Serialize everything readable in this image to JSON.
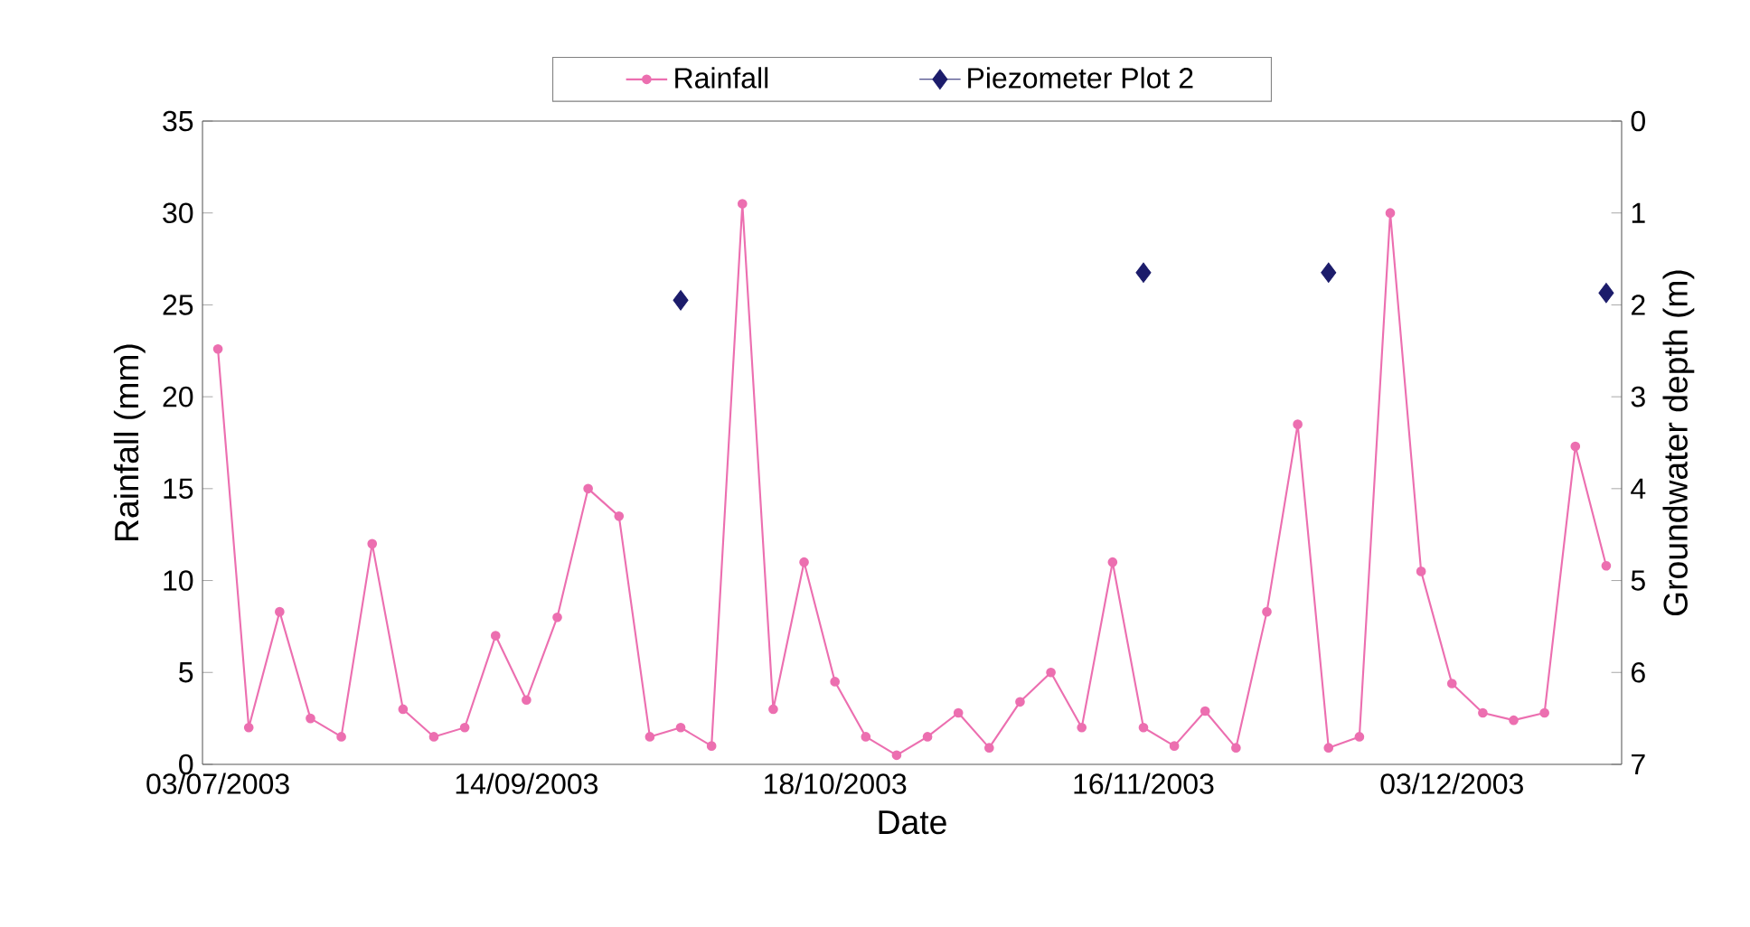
{
  "chart_data": {
    "type": "line",
    "xlabel": "Date",
    "ylabel": "Rainfall (mm)",
    "y2label": "Groundwater depth (m)",
    "categories": [
      "03/07/2003",
      null,
      null,
      null,
      null,
      null,
      null,
      null,
      null,
      null,
      "14/09/2003",
      null,
      null,
      null,
      null,
      null,
      null,
      null,
      null,
      null,
      "18/10/2003",
      null,
      null,
      null,
      null,
      null,
      null,
      null,
      null,
      null,
      "16/11/2003",
      null,
      null,
      null,
      null,
      null,
      null,
      null,
      null,
      null,
      "03/12/2003",
      null,
      null,
      null,
      null,
      null
    ],
    "series": [
      {
        "name": "Rainfall",
        "marker": "circle",
        "color": "#ec6fb0",
        "values": [
          22.6,
          2,
          8.3,
          2.5,
          1.5,
          12,
          3,
          1.5,
          2,
          7,
          3.5,
          8,
          15,
          13.5,
          1.5,
          2,
          1,
          30.5,
          3,
          11,
          4.5,
          1.5,
          0.5,
          1.5,
          2.8,
          0.9,
          3.4,
          5,
          2,
          11,
          2,
          1,
          2.9,
          0.9,
          8.3,
          18.5,
          0.9,
          1.5,
          30,
          10.5,
          4.4,
          2.8,
          2.4,
          2.8,
          17.3,
          10.8
        ]
      },
      {
        "name": "Piezometer Plot 2",
        "type": "scatter",
        "marker": "diamond",
        "axis": "y2",
        "color": "#1c1c6b",
        "values": [
          null,
          null,
          null,
          null,
          null,
          null,
          null,
          null,
          null,
          null,
          null,
          null,
          null,
          null,
          null,
          1.95,
          null,
          null,
          null,
          null,
          null,
          null,
          null,
          null,
          null,
          null,
          null,
          null,
          null,
          null,
          1.65,
          null,
          null,
          null,
          null,
          null,
          1.65,
          null,
          null,
          null,
          null,
          null,
          null,
          null,
          null,
          1.87
        ]
      }
    ],
    "ylim": [
      0,
      35
    ],
    "yticks": [
      0,
      5,
      10,
      15,
      20,
      25,
      30,
      35
    ],
    "y2lim": [
      7,
      0
    ],
    "y2ticks": [
      0,
      1,
      2,
      3,
      4,
      5,
      6,
      7
    ],
    "legend": "top"
  }
}
